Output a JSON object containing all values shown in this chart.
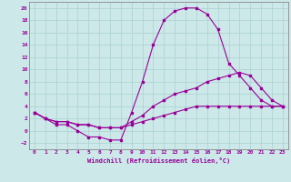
{
  "xlabel": "Windchill (Refroidissement éolien,°C)",
  "background_color": "#cce8e8",
  "grid_color": "#aad0d0",
  "line_color": "#990099",
  "xlim": [
    -0.5,
    23.5
  ],
  "ylim": [
    -3,
    21
  ],
  "xticks": [
    0,
    1,
    2,
    3,
    4,
    5,
    6,
    7,
    8,
    9,
    10,
    11,
    12,
    13,
    14,
    15,
    16,
    17,
    18,
    19,
    20,
    21,
    22,
    23
  ],
  "yticks": [
    -2,
    0,
    2,
    4,
    6,
    8,
    10,
    12,
    14,
    16,
    18,
    20
  ],
  "line1_x": [
    0,
    1,
    2,
    3,
    4,
    5,
    6,
    7,
    8,
    9,
    10,
    11,
    12,
    13,
    14,
    15,
    16,
    17,
    18,
    19,
    20,
    21,
    22,
    23
  ],
  "line1_y": [
    3,
    2,
    1,
    1,
    0,
    -1,
    -1,
    -1.5,
    -1.5,
    3,
    8,
    14,
    18,
    19.5,
    20,
    20,
    19,
    16.5,
    11,
    9,
    7,
    5,
    4,
    4
  ],
  "line2_x": [
    0,
    1,
    2,
    3,
    4,
    5,
    6,
    7,
    8,
    9,
    10,
    11,
    12,
    13,
    14,
    15,
    16,
    17,
    18,
    19,
    20,
    21,
    22,
    23
  ],
  "line2_y": [
    3,
    2,
    1.5,
    1.5,
    1,
    1,
    0.5,
    0.5,
    0.5,
    1.5,
    2.5,
    4,
    5,
    6,
    6.5,
    7,
    8,
    8.5,
    9,
    9.5,
    9,
    7,
    5,
    4
  ],
  "line3_x": [
    0,
    1,
    2,
    3,
    4,
    5,
    6,
    7,
    8,
    9,
    10,
    11,
    12,
    13,
    14,
    15,
    16,
    17,
    18,
    19,
    20,
    21,
    22,
    23
  ],
  "line3_y": [
    3,
    2,
    1.5,
    1.5,
    1,
    1,
    0.5,
    0.5,
    0.5,
    1,
    1.5,
    2,
    2.5,
    3,
    3.5,
    4,
    4,
    4,
    4,
    4,
    4,
    4,
    4,
    4
  ]
}
